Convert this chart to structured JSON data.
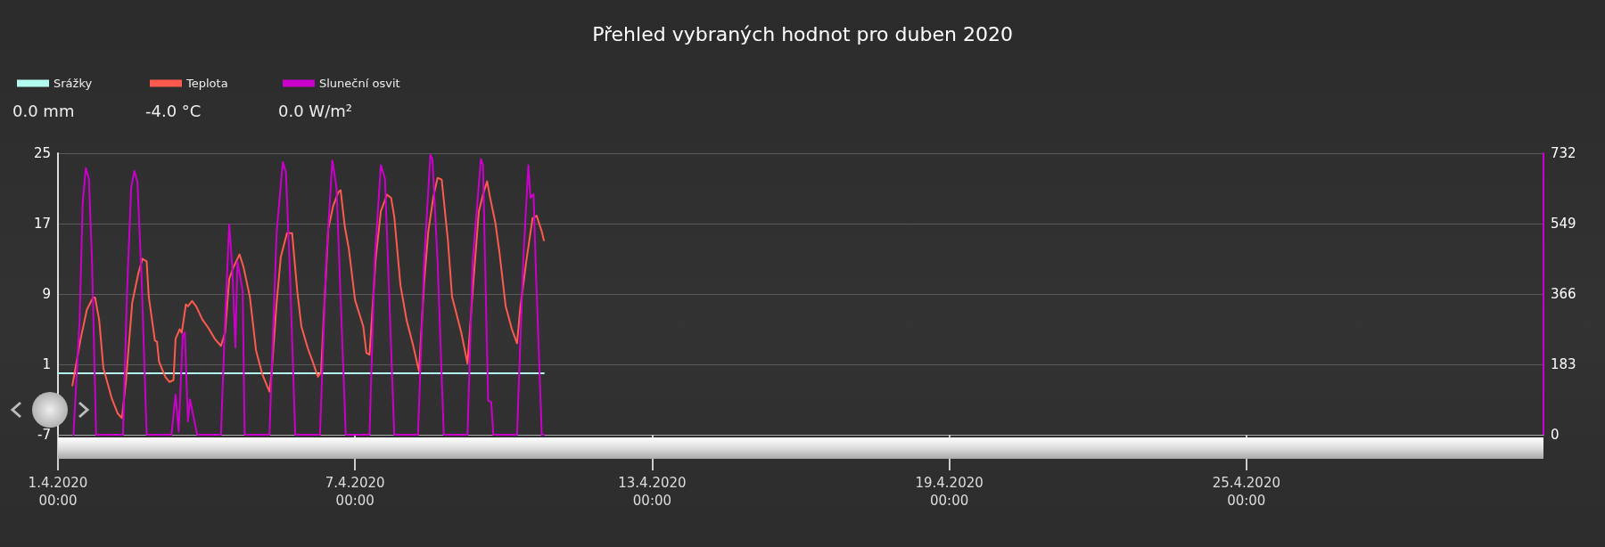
{
  "chart_data": {
    "type": "line",
    "title": "Přehled vybraných hodnot pro duben 2020",
    "annotations": [
      "0.0 mm",
      "-4.0 °C",
      "0.0 W/m²"
    ],
    "legend": "top left",
    "grid": "y",
    "marker": "none",
    "line_style": "solid",
    "xlim": [
      "2020-04-01",
      "2020-05-01"
    ],
    "xticks": [
      {
        "value": "2020-04-01",
        "label": "1.4.2020 00:00"
      },
      {
        "value": "2020-04-07",
        "label": "7.4.2020 00:00"
      },
      {
        "value": "2020-04-13",
        "label": "13.4.2020 00:00"
      },
      {
        "value": "2020-04-19",
        "label": "19.4.2020 00:00"
      },
      {
        "value": "2020-04-25",
        "label": "25.4.2020 00:00"
      }
    ],
    "ylim": [
      -7,
      25
    ],
    "yticks": [
      -7,
      1,
      9,
      17,
      25
    ],
    "y2lim": [
      0,
      732
    ],
    "y2ticks": [
      0,
      183,
      366,
      549,
      732
    ],
    "series": [
      {
        "name": "Srážky",
        "color": "#b3fbee",
        "x": [
          "2020-04-01T00:00",
          "2020-04-10T19:30"
        ],
        "values": [
          0,
          0
        ]
      },
      {
        "name": "Teplota",
        "color": "#ff5a4f",
        "x": [
          "2020-04-01T07:00",
          "2020-04-01T11:00",
          "2020-04-01T14:00",
          "2020-04-01T17:00",
          "2020-04-01T18:00",
          "2020-04-01T20:00",
          "2020-04-01T22:00",
          "2020-04-02T02:00",
          "2020-04-02T05:00",
          "2020-04-02T07:00",
          "2020-04-02T09:00",
          "2020-04-02T12:00",
          "2020-04-02T15:00",
          "2020-04-02T17:00",
          "2020-04-02T19:00",
          "2020-04-02T20:00",
          "2020-04-02T23:00",
          "2020-04-03T00:00",
          "2020-04-03T01:00",
          "2020-04-03T04:00",
          "2020-04-03T06:00",
          "2020-04-03T08:00",
          "2020-04-03T09:00",
          "2020-04-03T11:00",
          "2020-04-03T12:00",
          "2020-04-03T14:00",
          "2020-04-03T15:00",
          "2020-04-03T17:00",
          "2020-04-03T19:00",
          "2020-04-03T22:00",
          "2020-04-04T01:00",
          "2020-04-04T04:00",
          "2020-04-04T07:00",
          "2020-04-04T09:00",
          "2020-04-04T11:00",
          "2020-04-04T13:00",
          "2020-04-04T16:00",
          "2020-04-04T18:00",
          "2020-04-04T21:00",
          "2020-04-05T00:00",
          "2020-04-05T03:00",
          "2020-04-05T06:30",
          "2020-04-05T07:30",
          "2020-04-05T10:00",
          "2020-04-05T12:00",
          "2020-04-05T15:00",
          "2020-04-05T17:30",
          "2020-04-05T20:00",
          "2020-04-05T22:00",
          "2020-04-06T01:00",
          "2020-04-06T03:30",
          "2020-04-06T06:00",
          "2020-04-06T07:30",
          "2020-04-06T11:00",
          "2020-04-06T13:30",
          "2020-04-06T16:00",
          "2020-04-06T17:00",
          "2020-04-06T19:00",
          "2020-04-06T21:00",
          "2020-04-07T00:00",
          "2020-04-07T04:00",
          "2020-04-07T05:30",
          "2020-04-07T07:00",
          "2020-04-07T10:00",
          "2020-04-07T12:30",
          "2020-04-07T15:30",
          "2020-04-07T17:30",
          "2020-04-07T19:00",
          "2020-04-07T22:00",
          "2020-04-08T01:00",
          "2020-04-08T04:00",
          "2020-04-08T07:00",
          "2020-04-08T09:30",
          "2020-04-08T11:30",
          "2020-04-08T14:00",
          "2020-04-08T16:00",
          "2020-04-08T18:00",
          "2020-04-08T21:00",
          "2020-04-08T23:00",
          "2020-04-09T03:30",
          "2020-04-09T06:30",
          "2020-04-09T09:00",
          "2020-04-09T12:00",
          "2020-04-09T14:00",
          "2020-04-09T16:00",
          "2020-04-09T17:30",
          "2020-04-09T20:00",
          "2020-04-09T22:00",
          "2020-04-10T01:00",
          "2020-04-10T04:00",
          "2020-04-10T06:30",
          "2020-04-10T08:00",
          "2020-04-10T11:00",
          "2020-04-10T14:00",
          "2020-04-10T16:00",
          "2020-04-10T18:30",
          "2020-04-10T19:30"
        ],
        "values": [
          -1.4,
          3.9,
          7.2,
          8.6,
          8.6,
          6.0,
          0.6,
          -2.8,
          -4.6,
          -5.1,
          -0.8,
          8.0,
          11.4,
          13.0,
          12.7,
          8.7,
          3.7,
          3.6,
          1.3,
          -0.4,
          -1.0,
          -0.8,
          3.9,
          5.0,
          4.6,
          7.8,
          7.6,
          8.2,
          7.6,
          6.1,
          5.1,
          3.9,
          3.1,
          4.6,
          10.7,
          12.0,
          13.5,
          12.0,
          8.7,
          2.6,
          -0.1,
          -2.1,
          -0.1,
          8.0,
          13.2,
          15.9,
          15.9,
          9.3,
          5.3,
          2.9,
          1.3,
          -0.4,
          0.1,
          16.4,
          19.1,
          20.6,
          20.8,
          16.7,
          14.1,
          8.3,
          5.3,
          2.3,
          2.1,
          13.0,
          18.4,
          20.3,
          19.9,
          17.8,
          10.0,
          6.0,
          3.3,
          0.2,
          10.4,
          16.1,
          20.1,
          22.2,
          22.0,
          15.1,
          8.7,
          4.6,
          1.1,
          9.3,
          18.4,
          20.3,
          21.8,
          19.9,
          17.1,
          13.7,
          7.6,
          5.0,
          3.4,
          7.3,
          12.7,
          17.6,
          17.9,
          16.1,
          15.1
        ]
      },
      {
        "name": "Sluneční osvit",
        "color": "#cc00cc",
        "axis": "y2",
        "x": [
          "2020-04-01T07:30",
          "2020-04-01T10:30",
          "2020-04-01T12:00",
          "2020-04-01T13:30",
          "2020-04-01T15:00",
          "2020-04-01T16:30",
          "2020-04-01T18:30",
          "2020-04-02T07:30",
          "2020-04-02T09:30",
          "2020-04-02T11:30",
          "2020-04-02T13:00",
          "2020-04-02T14:30",
          "2020-04-02T16:30",
          "2020-04-02T19:00",
          "2020-04-03T07:00",
          "2020-04-03T09:00",
          "2020-04-03T10:30",
          "2020-04-03T12:30",
          "2020-04-03T13:30",
          "2020-04-03T15:00",
          "2020-04-03T16:00",
          "2020-04-03T17:00",
          "2020-04-03T19:30",
          "2020-04-04T07:00",
          "2020-04-04T09:00",
          "2020-04-04T11:00",
          "2020-04-04T12:30",
          "2020-04-04T14:00",
          "2020-04-04T15:00",
          "2020-04-04T17:30",
          "2020-04-04T18:30",
          "2020-04-05T06:30",
          "2020-04-05T10:00",
          "2020-04-05T13:00",
          "2020-04-05T14:30",
          "2020-04-05T16:30",
          "2020-04-05T19:00",
          "2020-04-06T07:00",
          "2020-04-06T10:00",
          "2020-04-06T13:00",
          "2020-04-06T15:00",
          "2020-04-06T19:30",
          "2020-04-07T07:00",
          "2020-04-07T09:30",
          "2020-04-07T12:30",
          "2020-04-07T14:30",
          "2020-04-07T19:00",
          "2020-04-08T06:30",
          "2020-04-08T09:30",
          "2020-04-08T12:30",
          "2020-04-08T13:30",
          "2020-04-08T16:00",
          "2020-04-08T19:00",
          "2020-04-09T06:30",
          "2020-04-09T09:00",
          "2020-04-09T13:00",
          "2020-04-09T14:00",
          "2020-04-09T16:30",
          "2020-04-09T18:00",
          "2020-04-09T19:00",
          "2020-04-10T06:30",
          "2020-04-10T09:30",
          "2020-04-10T12:00",
          "2020-04-10T13:00",
          "2020-04-10T14:30",
          "2020-04-10T15:30",
          "2020-04-10T18:30",
          "2020-04-10T19:30"
        ],
        "values": [
          0,
          297,
          605,
          693,
          666,
          451,
          0,
          0,
          374,
          643,
          686,
          659,
          412,
          0,
          0,
          104,
          8,
          258,
          266,
          35,
          92,
          65,
          0,
          0,
          297,
          547,
          435,
          227,
          451,
          374,
          0,
          0,
          528,
          709,
          682,
          412,
          0,
          0,
          451,
          713,
          643,
          0,
          0,
          451,
          701,
          666,
          0,
          0,
          451,
          728,
          717,
          451,
          0,
          0,
          451,
          717,
          701,
          89,
          85,
          0,
          0,
          451,
          701,
          616,
          626,
          451,
          0,
          0
        ]
      }
    ]
  }
}
